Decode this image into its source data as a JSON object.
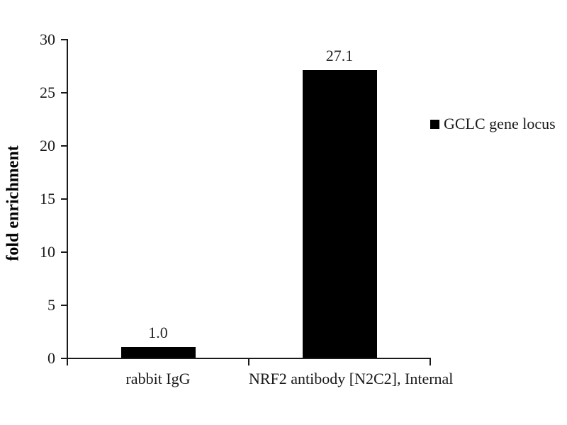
{
  "figure": {
    "ylabel": "fold enrichment",
    "legend_label": "GCLC gene locus"
  },
  "chart_data": {
    "type": "bar",
    "title": "",
    "categories": [
      "rabbit IgG",
      "NRF2 antibody [N2C2], Internal"
    ],
    "series": [
      {
        "name": "GCLC gene locus",
        "values": [
          1.0,
          27.1
        ]
      }
    ],
    "data_labels": [
      "1.0",
      "27.1"
    ],
    "xlabel": "",
    "ylabel": "fold enrichment",
    "ylim": [
      0,
      30
    ],
    "yticks": [
      0,
      5,
      10,
      15,
      20,
      25,
      30
    ],
    "grid": false,
    "bar_color": "#000000",
    "axis_color": "#1a1a1a",
    "legend": {
      "position": "right",
      "entries": [
        {
          "label": "GCLC gene locus",
          "color": "#000000"
        }
      ]
    }
  }
}
